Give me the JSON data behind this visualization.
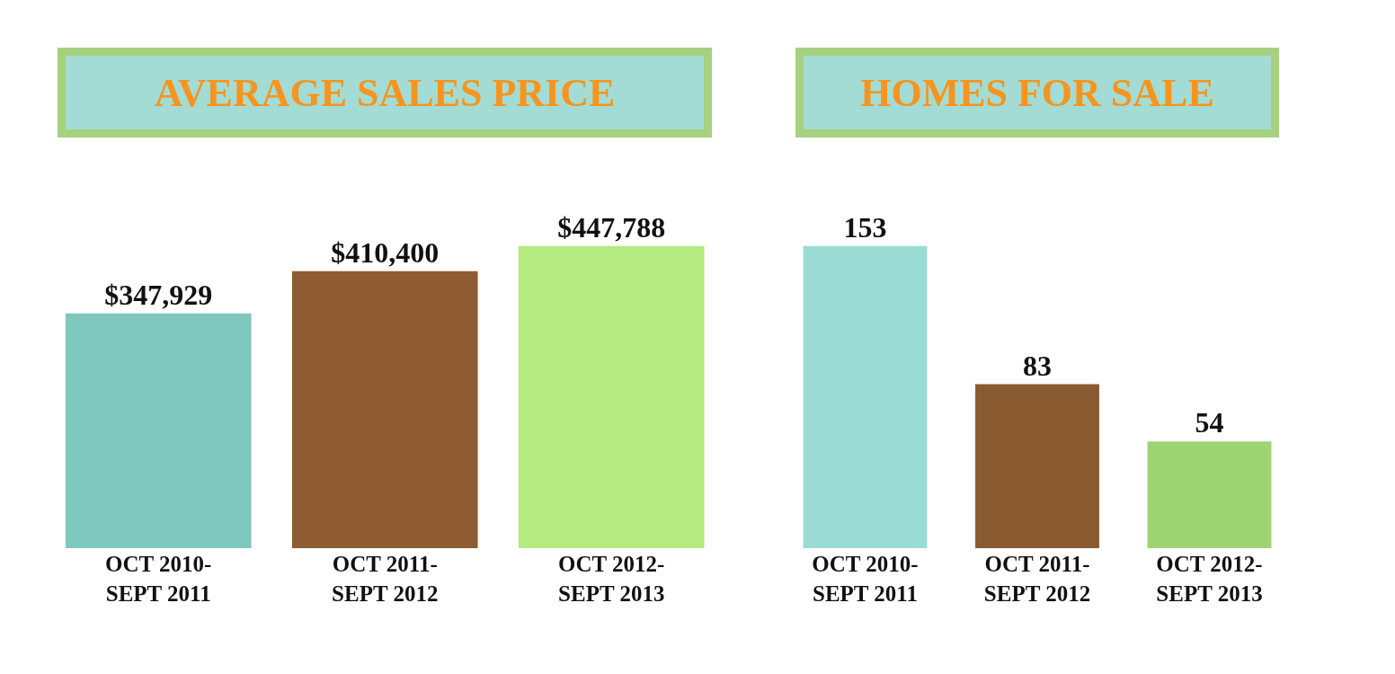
{
  "chart_data": [
    {
      "type": "bar",
      "title": "AVERAGE SALES PRICE",
      "categories": [
        "OCT 2010-\nSEPT 2011",
        "OCT 2011-\nSEPT 2012",
        "OCT 2012-\nSEPT 2013"
      ],
      "values": [
        347929,
        410400,
        447788
      ],
      "value_labels": [
        "$347,929",
        "$410,400",
        "$447,788"
      ],
      "colors": [
        "#7fc8bf",
        "#8e5c30",
        "#b4ea80"
      ]
    },
    {
      "type": "bar",
      "title": "HOMES FOR SALE",
      "categories": [
        "OCT 2010-\nSEPT 2011",
        "OCT 2011-\nSEPT 2012",
        "OCT 2012-\nSEPT 2013"
      ],
      "values": [
        153,
        83,
        54
      ],
      "data_labels": true,
      "colors": [
        "#9adcd4",
        "#8a5a30",
        "#9fd472"
      ]
    }
  ]
}
